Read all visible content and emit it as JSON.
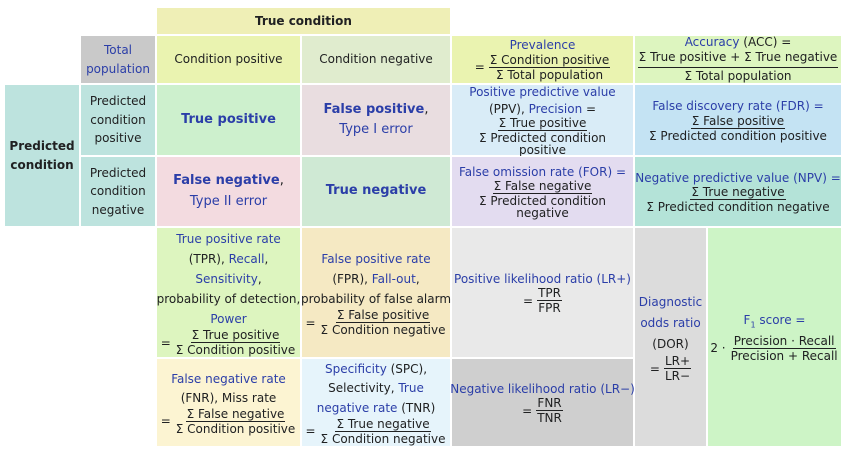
{
  "header": {
    "true_condition": "True condition",
    "predicted_condition_line1": "Predicted",
    "predicted_condition_line2": "condition"
  },
  "top_row": {
    "total_population_line1": "Total",
    "total_population_line2": "population",
    "condition_positive": "Condition positive",
    "condition_negative": "Condition negative",
    "prevalence": {
      "label": "Prevalence",
      "eq": "=",
      "num": "Σ Condition positive",
      "den": "Σ Total population"
    },
    "accuracy": {
      "label_link": "Accuracy",
      "label_rest": " (ACC) =",
      "num": "Σ True positive + Σ True negative",
      "den": "Σ Total population"
    }
  },
  "predicted_positive": {
    "label_line1": "Predicted",
    "label_line2": "condition",
    "label_line3": "positive",
    "true_positive": "True positive",
    "false_positive_link": "False positive",
    "false_positive_comma": ",",
    "type1_error": "Type I error",
    "ppv": {
      "line1": "Positive predictive value",
      "line2_pre": "(PPV), ",
      "line2_link": "Precision",
      "line2_post": " =",
      "num": "Σ True positive",
      "den": "Σ Predicted condition positive"
    },
    "fdr": {
      "label": "False discovery rate (FDR) =",
      "eq": "",
      "num": "Σ False positive",
      "den": "Σ Predicted condition positive"
    }
  },
  "predicted_negative": {
    "label_line1": "Predicted",
    "label_line2": "condition",
    "label_line3": "negative",
    "false_negative_link": "False negative",
    "false_negative_comma": ",",
    "type2_error": "Type II error",
    "true_negative": "True negative",
    "for": {
      "label": "False omission rate (FOR) =",
      "num": "Σ False negative",
      "den": "Σ Predicted condition negative"
    },
    "npv": {
      "label": "Negative predictive value",
      "label_rest": " (NPV) =",
      "num": "Σ True negative",
      "den": "Σ Predicted condition negative"
    }
  },
  "rates": {
    "tpr": {
      "line1": "True positive rate",
      "line2_pre": "(TPR), ",
      "line2_link": "Recall",
      "line2_post": ",",
      "line3": "Sensitivity",
      "line3_post": ",",
      "line4": "probability of detection,",
      "line5": "Power",
      "eq": "=",
      "num": "Σ True positive",
      "den": "Σ Condition positive"
    },
    "fpr": {
      "line1": "False positive rate",
      "line2_pre": "(FPR), ",
      "line2_link": "Fall-out",
      "line2_post": ",",
      "line3": "probability of false alarm",
      "eq": "=",
      "num": "Σ False positive",
      "den": "Σ Condition negative"
    },
    "lr_pos": {
      "label": "Positive likelihood ratio (LR+)",
      "eq": "=",
      "num": "TPR",
      "den": "FPR"
    },
    "dor": {
      "line1": "Diagnostic",
      "line2": "odds ratio",
      "line3": "(DOR)",
      "eq": "=",
      "num": "LR+",
      "den": "LR−"
    },
    "f1": {
      "label": "F",
      "sub": "1",
      "label_post": " score =",
      "prefix": "2 ·",
      "num": "Precision · Recall",
      "den": "Precision + Recall"
    },
    "fnr": {
      "line1": "False negative rate",
      "line2": "(FNR), Miss rate",
      "eq": "=",
      "num": "Σ False negative",
      "den": "Σ Condition positive"
    },
    "spc": {
      "line1_link": "Specificity",
      "line1_post": " (SPC),",
      "line2_pre": "Selectivity, ",
      "line2_link": "True",
      "line3_link": "negative rate",
      "line3_post": " (TNR)",
      "eq": "=",
      "num": "Σ True negative",
      "den": "Σ Condition negative"
    },
    "lr_neg": {
      "label": "Negative likelihood ratio (LR−)",
      "eq": "=",
      "num": "FNR",
      "den": "TNR"
    }
  }
}
